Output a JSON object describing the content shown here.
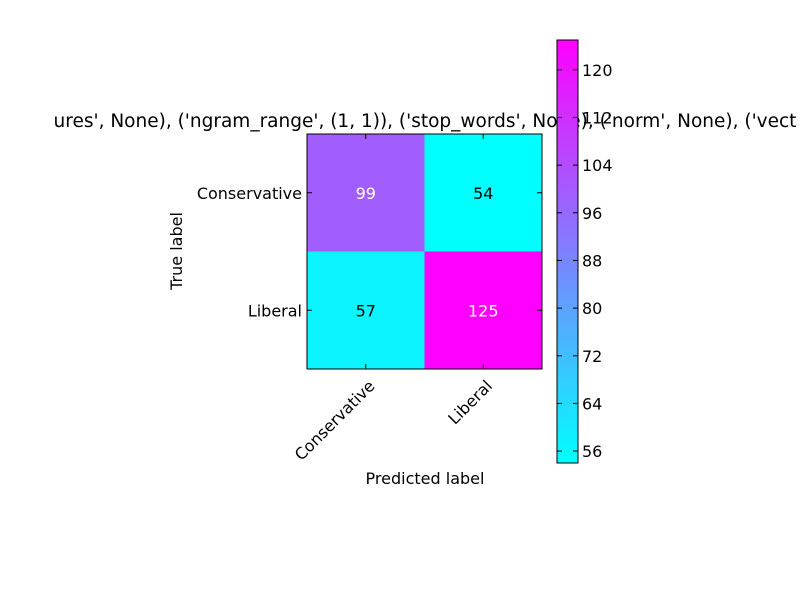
{
  "chart_data": {
    "type": "heatmap",
    "title": "ures', None), ('ngram_range', (1, 1)), ('stop_words', None), ('norm', None), ('vect",
    "xlabel": "Predicted label",
    "ylabel": "True label",
    "x_categories": [
      "Conservative",
      "Liberal"
    ],
    "y_categories": [
      "Conservative",
      "Liberal"
    ],
    "values": [
      [
        99,
        54
      ],
      [
        57,
        125
      ]
    ],
    "colormap": "cool",
    "color_low": "#00ffff",
    "color_high": "#ff00ff",
    "vmin": 54,
    "vmax": 125,
    "colorbar_ticks": [
      56,
      64,
      72,
      80,
      88,
      96,
      104,
      112,
      120
    ],
    "colorbar_tick_labels": [
      "56",
      "64",
      "72",
      "80",
      "88",
      "96",
      "104",
      "112",
      "120"
    ]
  }
}
